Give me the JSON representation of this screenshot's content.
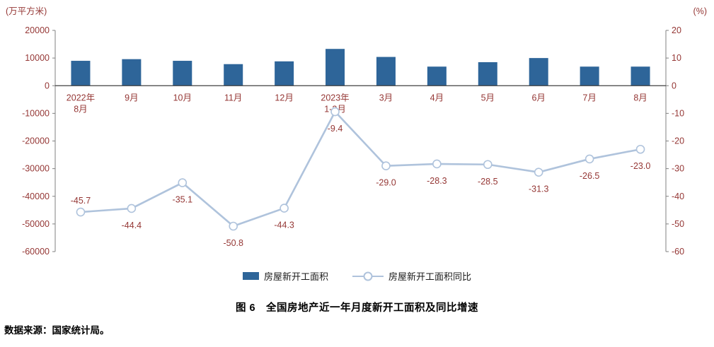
{
  "caption": "图 6　全国房地产近一年月度新开工面积及同比增速",
  "source": "数据来源：国家统计局。",
  "colors": {
    "bar": "#2e6599",
    "line": "#afc3dc",
    "axis_text": "#953735",
    "axis_line": "#808080",
    "zero_line": "#404040",
    "legend_text": "#1a1a1a"
  },
  "chart_data": {
    "type": "combo-bar-line",
    "title": "图 6　全国房地产近一年月度新开工面积及同比增速",
    "legend_position": "bottom",
    "grid": false,
    "categories": [
      [
        "2022年",
        "8月"
      ],
      [
        "9月"
      ],
      [
        "10月"
      ],
      [
        "11月"
      ],
      [
        "12月"
      ],
      [
        "2023年",
        "1-2月"
      ],
      [
        "3月"
      ],
      [
        "4月"
      ],
      [
        "5月"
      ],
      [
        "6月"
      ],
      [
        "7月"
      ],
      [
        "8月"
      ]
    ],
    "left_axis": {
      "unit": "(万平方米)",
      "min": -60000,
      "max": 20000,
      "ticks": [
        20000,
        10000,
        0,
        -10000,
        -20000,
        -30000,
        -40000,
        -50000,
        -60000
      ]
    },
    "right_axis": {
      "unit": "(%)",
      "min": -60,
      "max": 20,
      "ticks": [
        20,
        10,
        0,
        -10,
        -20,
        -30,
        -40,
        -50,
        -60
      ]
    },
    "series": [
      {
        "name": "房屋新开工面积",
        "type": "bar",
        "axis": "left",
        "values": [
          9000,
          9600,
          9000,
          7800,
          8800,
          13300,
          10400,
          6900,
          8500,
          10000,
          6900,
          6900
        ]
      },
      {
        "name": "房屋新开工面积同比",
        "type": "line",
        "axis": "right",
        "values": [
          -45.7,
          -44.4,
          -35.1,
          -50.8,
          -44.3,
          -9.4,
          -29.0,
          -28.3,
          -28.5,
          -31.3,
          -26.5,
          -23.0
        ],
        "labels": [
          "-45.7",
          "-44.4",
          "-35.1",
          "-50.8",
          "-44.3",
          "-9.4",
          "-29.0",
          "-28.3",
          "-28.5",
          "-31.3",
          "-26.5",
          "-23.0"
        ]
      }
    ]
  }
}
